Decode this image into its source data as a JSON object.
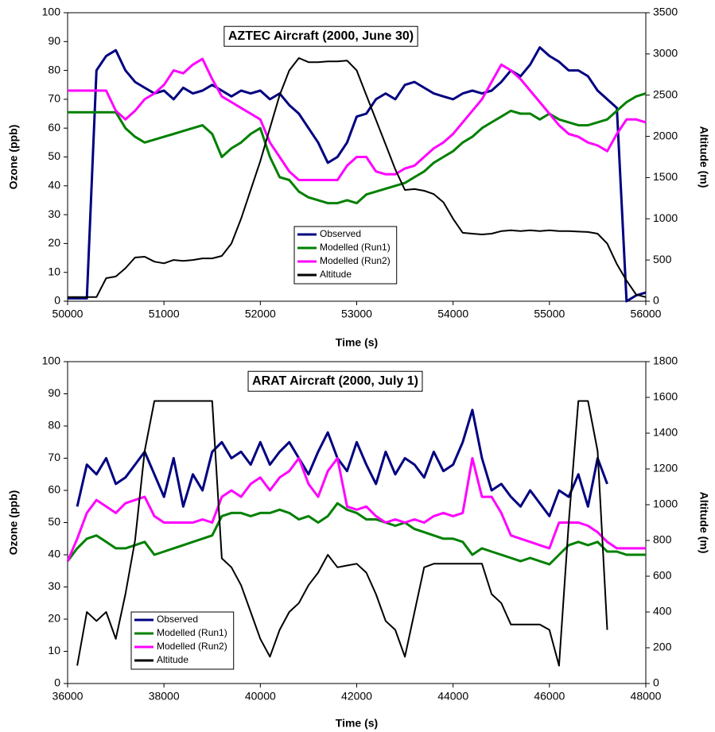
{
  "chart_data": [
    {
      "type": "line",
      "title": "AZTEC Aircraft (2000, June 30)",
      "xlabel": "Time (s)",
      "ylabel": "Ozone (ppb)",
      "y2label": "Altitude (m)",
      "x": [
        50000,
        50100,
        50200,
        50300,
        50400,
        50500,
        50600,
        50700,
        50800,
        50900,
        51000,
        51100,
        51200,
        51300,
        51400,
        51500,
        51600,
        51700,
        51800,
        51900,
        52000,
        52100,
        52200,
        52300,
        52400,
        52500,
        52600,
        52700,
        52800,
        52900,
        53000,
        53100,
        53200,
        53300,
        53400,
        53500,
        53600,
        53700,
        53800,
        53900,
        54000,
        54100,
        54200,
        54300,
        54400,
        54500,
        54600,
        54700,
        54800,
        54900,
        55000,
        55100,
        55200,
        55300,
        55400,
        55500,
        55600,
        55700,
        55800,
        55900,
        56000
      ],
      "xlim": [
        50000,
        56000
      ],
      "xticks": [
        50000,
        51000,
        52000,
        53000,
        54000,
        55000,
        56000
      ],
      "ylim": [
        0,
        100
      ],
      "yticks": [
        0,
        10,
        20,
        30,
        40,
        50,
        60,
        70,
        80,
        90,
        100
      ],
      "y2lim": [
        0,
        3500
      ],
      "y2ticks": [
        0,
        500,
        1000,
        1500,
        2000,
        2500,
        3000,
        3500
      ],
      "series": [
        {
          "name": "Observed",
          "color": "#000080",
          "values": [
            1,
            1,
            1,
            80,
            85,
            87,
            80,
            76,
            74,
            72,
            73,
            70,
            74,
            72,
            73,
            75,
            73,
            71,
            73,
            72,
            73,
            70,
            72,
            68,
            65,
            60,
            55,
            48,
            50,
            55,
            64,
            65,
            70,
            72,
            70,
            75,
            76,
            74,
            72,
            71,
            70,
            72,
            73,
            72,
            73,
            76,
            80,
            78,
            82,
            88,
            85,
            83,
            80,
            80,
            78,
            73,
            70,
            67,
            0,
            2,
            3
          ]
        },
        {
          "name": "Modelled (Run1)",
          "color": "#008000",
          "values": [
            65.5,
            65.5,
            65.5,
            65.5,
            65.5,
            65.5,
            60,
            57,
            55,
            56,
            57,
            58,
            59,
            60,
            61,
            58,
            50,
            53,
            55,
            58,
            60,
            50,
            43,
            42,
            38,
            36,
            35,
            34,
            34,
            35,
            34,
            37,
            38,
            39,
            40,
            41,
            43,
            45,
            48,
            50,
            52,
            55,
            57,
            60,
            62,
            64,
            66,
            65,
            65,
            63,
            65,
            63,
            62,
            61,
            61,
            62,
            63,
            66,
            69,
            71,
            72
          ]
        },
        {
          "name": "Modelled (Run2)",
          "color": "#ff00ff",
          "values": [
            73,
            73,
            73,
            73,
            73,
            66,
            63,
            66,
            70,
            72,
            75,
            80,
            79,
            82,
            84,
            77,
            71,
            69,
            67,
            65,
            63,
            55,
            50,
            45,
            42,
            42,
            42,
            42,
            42,
            47,
            50,
            50,
            45,
            44,
            44,
            46,
            47,
            50,
            53,
            55,
            58,
            62,
            66,
            70,
            76,
            82,
            80,
            77,
            73,
            69,
            65,
            61,
            58,
            57,
            55,
            54,
            52,
            58,
            63,
            63,
            62
          ]
        },
        {
          "name": "Altitude",
          "color": "#000000",
          "axis": "y2",
          "values": [
            50,
            50,
            50,
            50,
            280,
            300,
            400,
            530,
            540,
            480,
            460,
            500,
            490,
            500,
            520,
            520,
            550,
            700,
            1000,
            1350,
            1700,
            2100,
            2500,
            2800,
            2950,
            2900,
            2900,
            2910,
            2910,
            2920,
            2800,
            2500,
            2200,
            1900,
            1600,
            1350,
            1360,
            1340,
            1300,
            1200,
            1000,
            830,
            820,
            810,
            820,
            850,
            860,
            850,
            860,
            850,
            860,
            850,
            850,
            845,
            840,
            820,
            700,
            450,
            250,
            80,
            50
          ]
        }
      ]
    },
    {
      "type": "line",
      "title": "ARAT Aircraft (2000, July 1)",
      "xlabel": "Time (s)",
      "ylabel": "Ozone (ppb)",
      "y2label": "Altitude (m)",
      "x": [
        36000,
        36200,
        36400,
        36600,
        36800,
        37000,
        37200,
        37400,
        37600,
        37800,
        38000,
        38200,
        38400,
        38600,
        38800,
        39000,
        39200,
        39400,
        39600,
        39800,
        40000,
        40200,
        40400,
        40600,
        40800,
        41000,
        41200,
        41400,
        41600,
        41800,
        42000,
        42200,
        42400,
        42600,
        42800,
        43000,
        43200,
        43400,
        43600,
        43800,
        44000,
        44200,
        44400,
        44600,
        44800,
        45000,
        45200,
        45400,
        45600,
        45800,
        46000,
        46200,
        46400,
        46600,
        46800,
        47000,
        47200,
        47400,
        47600,
        47800,
        48000
      ],
      "xlim": [
        36000,
        48000
      ],
      "xticks": [
        36000,
        38000,
        40000,
        42000,
        44000,
        46000,
        48000
      ],
      "ylim": [
        0,
        100
      ],
      "yticks": [
        0,
        10,
        20,
        30,
        40,
        50,
        60,
        70,
        80,
        90,
        100
      ],
      "y2lim": [
        0,
        1800
      ],
      "y2ticks": [
        0,
        200,
        400,
        600,
        800,
        1000,
        1200,
        1400,
        1600,
        1800
      ],
      "series": [
        {
          "name": "Observed",
          "color": "#000080",
          "values": [
            null,
            55,
            68,
            65,
            70,
            62,
            64,
            68,
            72,
            65,
            58,
            70,
            55,
            65,
            60,
            72,
            75,
            70,
            72,
            68,
            75,
            68,
            72,
            75,
            70,
            65,
            72,
            78,
            70,
            66,
            75,
            68,
            62,
            72,
            65,
            70,
            68,
            64,
            72,
            66,
            68,
            75,
            85,
            70,
            60,
            62,
            58,
            55,
            60,
            56,
            52,
            60,
            58,
            65,
            55,
            70,
            62,
            null,
            null,
            null,
            null
          ]
        },
        {
          "name": "Modelled (Run1)",
          "color": "#008000",
          "values": [
            38,
            42,
            45,
            46,
            44,
            42,
            42,
            43,
            44,
            40,
            41,
            42,
            43,
            44,
            45,
            46,
            52,
            53,
            53,
            52,
            53,
            53,
            54,
            53,
            51,
            52,
            50,
            52,
            56,
            54,
            53,
            51,
            51,
            50,
            49,
            50,
            48,
            47,
            46,
            45,
            45,
            44,
            40,
            42,
            41,
            40,
            39,
            38,
            39,
            38,
            37,
            40,
            43,
            44,
            43,
            44,
            41,
            41,
            40,
            40,
            40
          ]
        },
        {
          "name": "Modelled (Run2)",
          "color": "#ff00ff",
          "values": [
            38,
            45,
            53,
            57,
            55,
            53,
            56,
            57,
            58,
            52,
            50,
            50,
            50,
            50,
            51,
            50,
            58,
            60,
            58,
            62,
            64,
            60,
            64,
            66,
            70,
            62,
            58,
            66,
            70,
            55,
            54,
            55,
            52,
            50,
            51,
            50,
            51,
            50,
            52,
            53,
            52,
            53,
            70,
            58,
            58,
            53,
            46,
            45,
            44,
            43,
            42,
            50,
            50,
            50,
            49,
            47,
            44,
            42,
            42,
            42,
            42
          ]
        },
        {
          "name": "Altitude",
          "color": "#000000",
          "axis": "y2",
          "values": [
            null,
            100,
            400,
            350,
            400,
            250,
            500,
            800,
            1300,
            1580,
            1580,
            1580,
            1580,
            1580,
            1580,
            1580,
            700,
            650,
            550,
            400,
            250,
            150,
            300,
            400,
            450,
            550,
            620,
            720,
            650,
            660,
            670,
            620,
            500,
            350,
            300,
            150,
            400,
            650,
            670,
            670,
            670,
            670,
            670,
            670,
            500,
            450,
            330,
            330,
            330,
            330,
            300,
            100,
            900,
            1580,
            1580,
            1300,
            300,
            null,
            null,
            null,
            null
          ]
        }
      ]
    }
  ]
}
